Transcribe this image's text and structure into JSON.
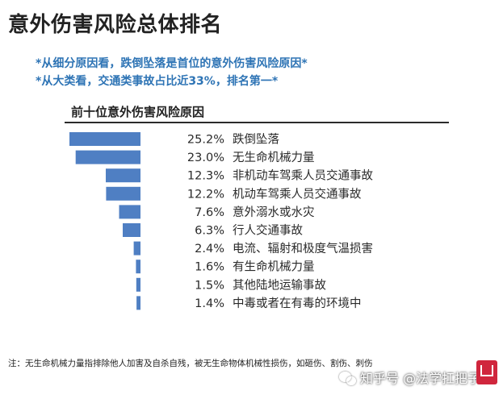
{
  "header": {
    "title": "意外伤害风险总体排名",
    "subtitle_1": "*从细分原因看，跌倒坠落是首位的意外伤害风险原因*",
    "subtitle_2": "*从大类看，交通类事故占比近33%，排名第一*"
  },
  "chart_data": {
    "type": "bar",
    "orientation": "horizontal",
    "title": "前十位意外伤害风险原因",
    "categories": [
      "跌倒坠落",
      "无生命机械力量",
      "非机动车驾乘人员交通事故",
      "机动车驾乘人员交通事故",
      "意外溺水或水灾",
      "行人交通事故",
      "电流、辐射和极度气温损害",
      "有生命机械力量",
      "其他陆地运输事故",
      "中毒或者在有毒的环境中"
    ],
    "values": [
      25.2,
      23.0,
      12.3,
      12.2,
      7.6,
      6.3,
      2.4,
      1.6,
      1.5,
      1.4
    ],
    "value_labels": [
      "25.2%",
      "23.0%",
      "12.3%",
      "12.2%",
      "7.6%",
      "6.3%",
      "2.4%",
      "1.6%",
      "1.5%",
      "1.4%"
    ],
    "bar_alignment": "right",
    "xlim": [
      0,
      25.2
    ],
    "grid": false,
    "legend": "none",
    "bar_color": "#4f7fc3"
  },
  "footnote": "注：无生命机械力量指排除他人加害及自杀自残，被无生命物体机械性损伤，如砸伤、割伤、刺伤",
  "watermark": "知乎号 @法学扛把子",
  "colors": {
    "subtitle": "#2e74b5",
    "bar": "#4f7fc3",
    "logo": "#d0263d"
  },
  "icons": {
    "watermark": "wechat-icon",
    "logo": "brand-logo-icon"
  }
}
